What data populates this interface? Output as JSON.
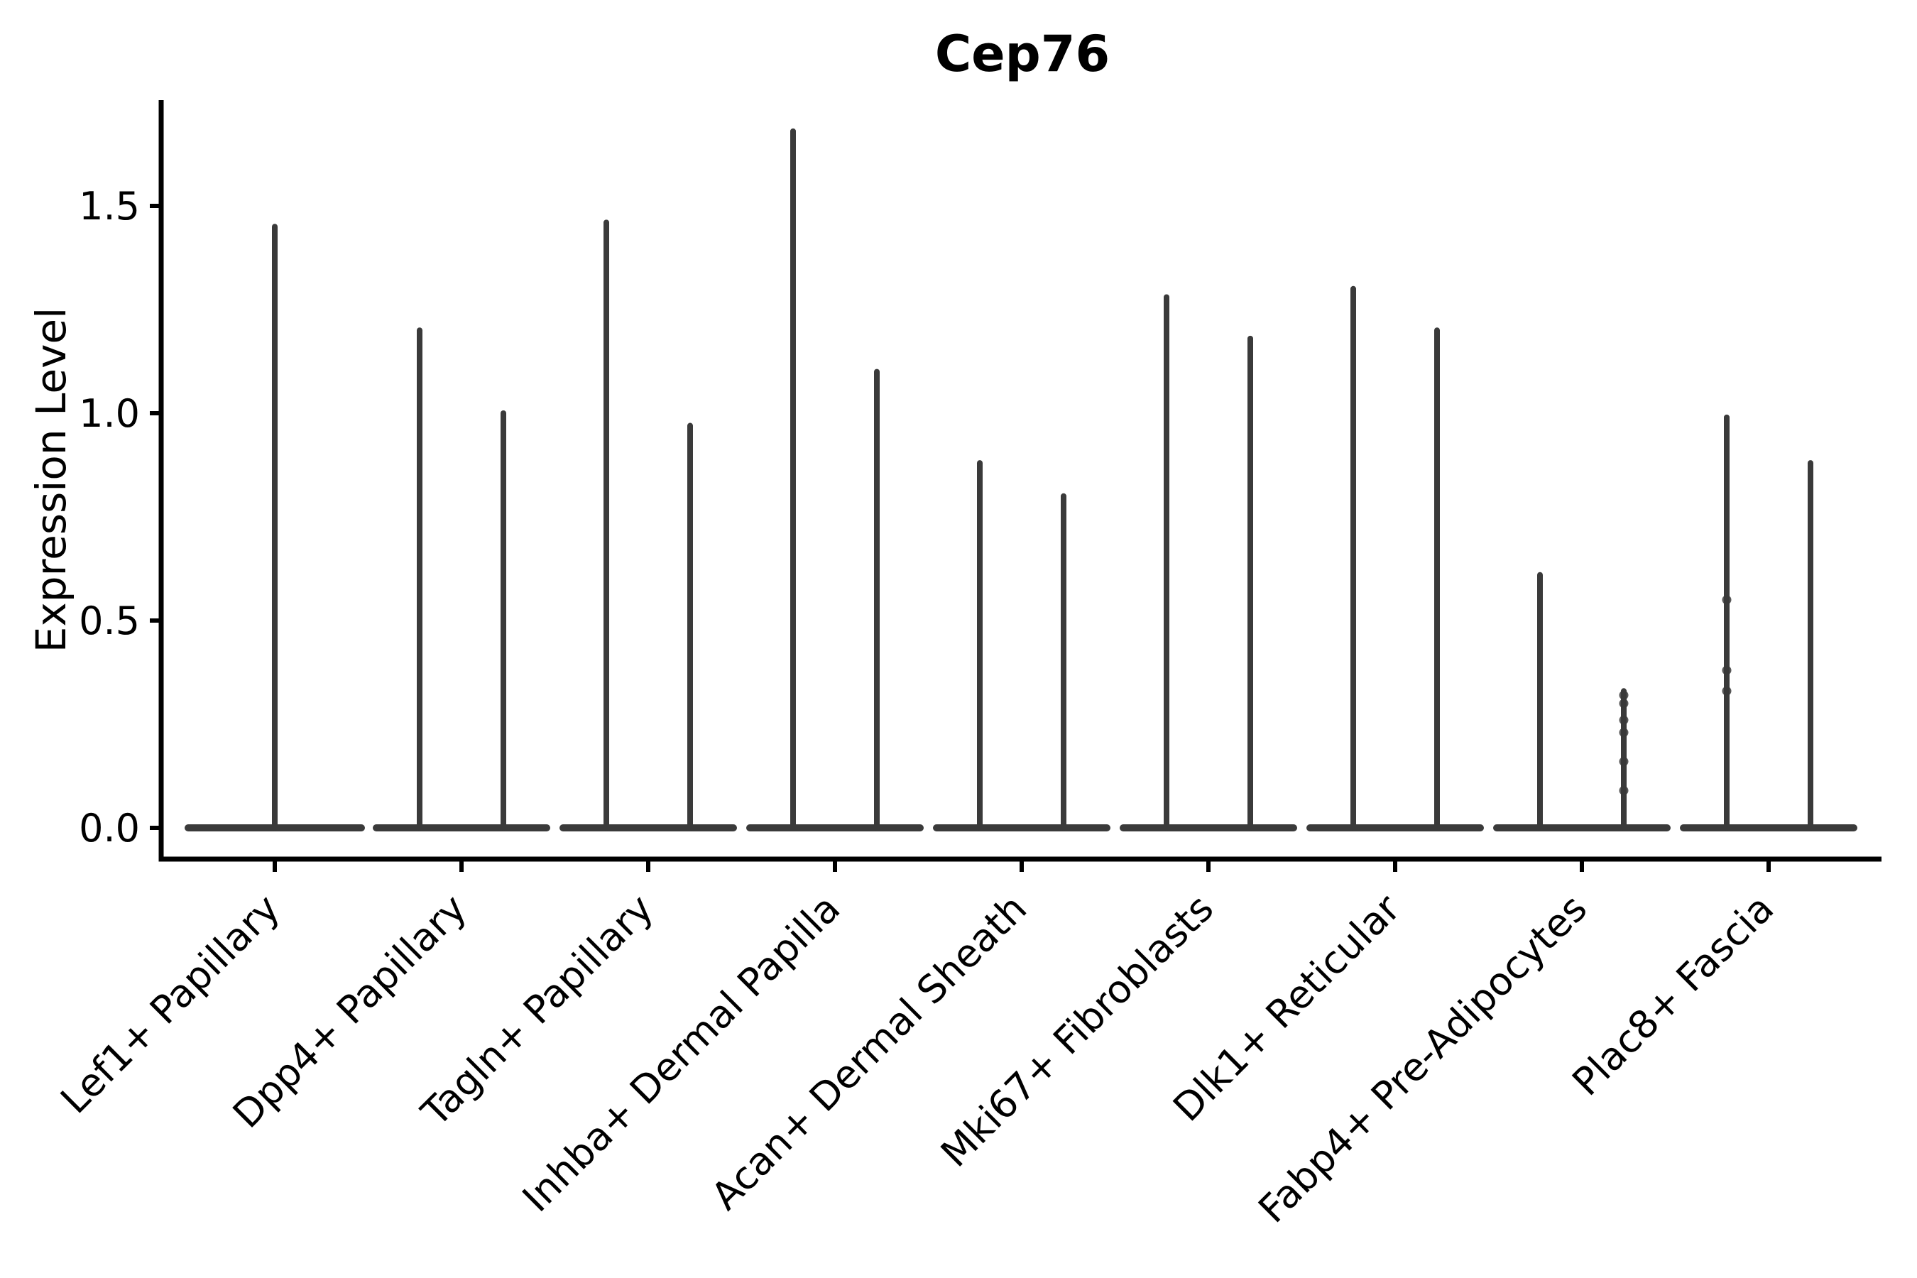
{
  "figure": {
    "title": "Cep76",
    "ylabel": "Expression Level"
  },
  "chart_data": {
    "type": "violin",
    "title": "Cep76",
    "ylabel": "Expression Level",
    "xlabel": "",
    "y_ticks": [
      "0.0",
      "0.5",
      "1.0",
      "1.5"
    ],
    "ylim": [
      0,
      1.79
    ],
    "grid": false,
    "legend": "none",
    "background": "#ffffff",
    "axis_color": "#000000",
    "violin_color": "#3a3a3a",
    "baseline_value": 0.0,
    "description": "Zero-inflated expression violins: each violin is a wide flat body at 0 with a thin tail up to its max expression value",
    "groups": [
      {
        "label": "Lef1+ Papillary",
        "violins": [
          {
            "max": 1.45,
            "dots": []
          }
        ]
      },
      {
        "label": "Dpp4+ Papillary",
        "violins": [
          {
            "max": 1.2,
            "dots": []
          },
          {
            "max": 1.0,
            "dots": []
          }
        ]
      },
      {
        "label": "Tagln+ Papillary",
        "violins": [
          {
            "max": 1.46,
            "dots": []
          },
          {
            "max": 0.97,
            "dots": []
          }
        ]
      },
      {
        "label": "Inhba+ Dermal Papilla",
        "violins": [
          {
            "max": 1.68,
            "dots": []
          },
          {
            "max": 1.1,
            "dots": []
          }
        ]
      },
      {
        "label": "Acan+ Dermal Sheath",
        "violins": [
          {
            "max": 0.88,
            "dots": []
          },
          {
            "max": 0.8,
            "dots": []
          }
        ]
      },
      {
        "label": "Mki67+ Fibroblasts",
        "violins": [
          {
            "max": 1.28,
            "dots": []
          },
          {
            "max": 1.18,
            "dots": []
          }
        ]
      },
      {
        "label": "Dlk1+ Reticular",
        "violins": [
          {
            "max": 1.3,
            "dots": []
          },
          {
            "max": 1.2,
            "dots": []
          }
        ]
      },
      {
        "label": "Fabp4+ Pre-Adipocytes",
        "violins": [
          {
            "max": 0.61,
            "dots": []
          },
          {
            "max": 0.33,
            "dots": [
              0.32,
              0.3,
              0.26,
              0.23,
              0.16,
              0.09
            ]
          }
        ]
      },
      {
        "label": "Plac8+ Fascia",
        "violins": [
          {
            "max": 0.99,
            "dots": [
              0.55,
              0.38,
              0.33
            ]
          },
          {
            "max": 0.88,
            "dots": []
          }
        ]
      }
    ]
  }
}
